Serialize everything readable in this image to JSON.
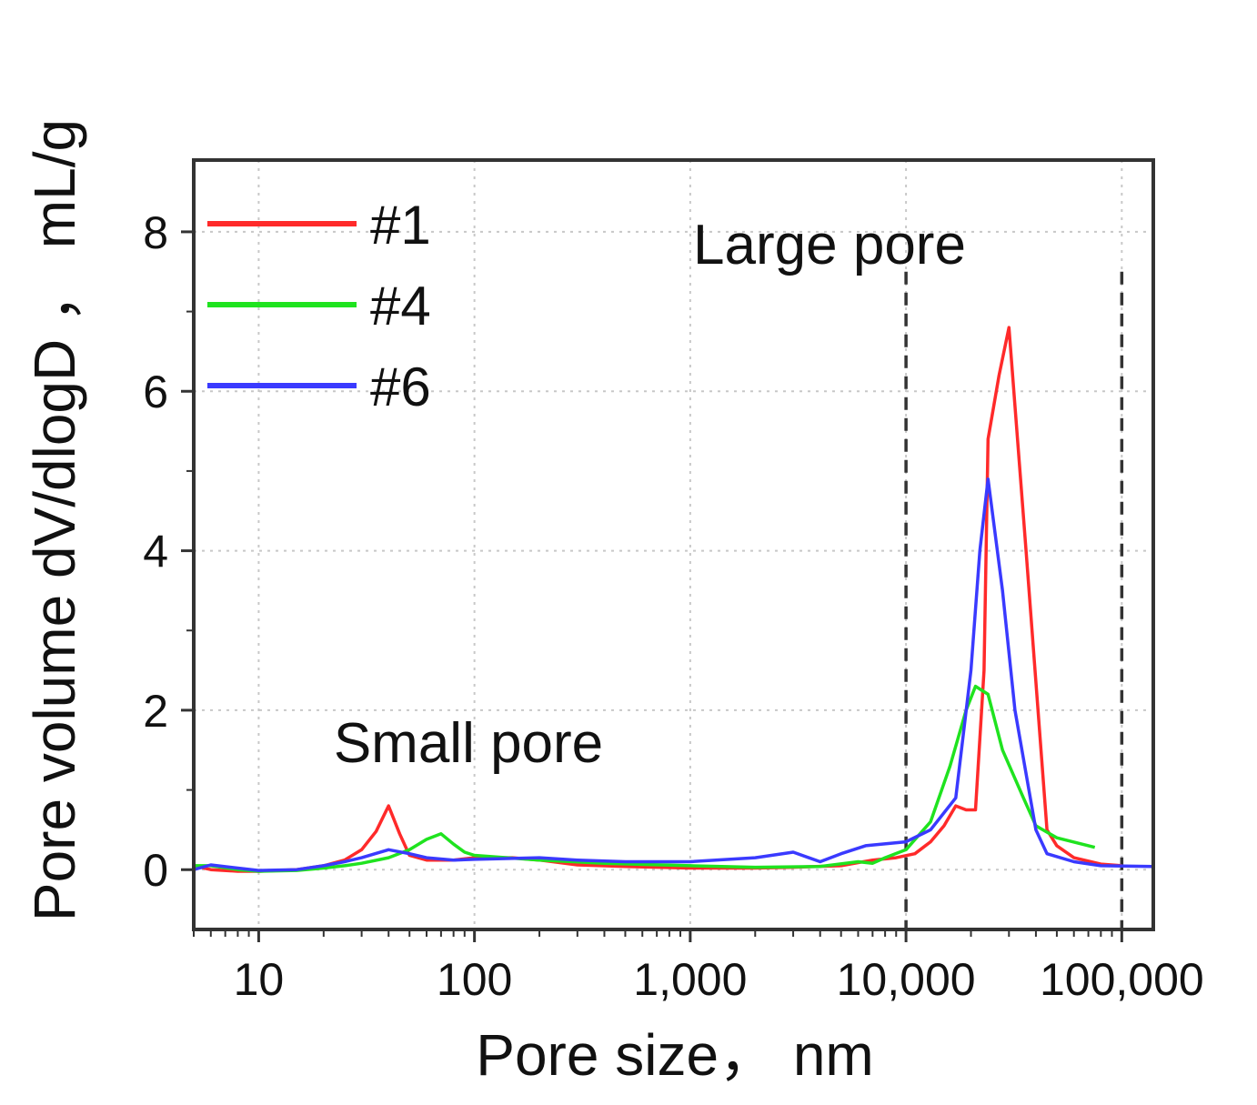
{
  "chart_data": {
    "type": "line",
    "title": "",
    "xlabel": "Pore size， nm",
    "ylabel": "Pore volume dV/dlogD ， mL/g",
    "x_scale": "log",
    "xlim": [
      5,
      140000
    ],
    "ylim": [
      -0.75,
      8.9
    ],
    "grid": true,
    "x_ticks": [
      {
        "value": 10,
        "label": "10"
      },
      {
        "value": 100,
        "label": "100"
      },
      {
        "value": 1000,
        "label": "1,000"
      },
      {
        "value": 10000,
        "label": "10,000"
      },
      {
        "value": 100000,
        "label": "100,000"
      }
    ],
    "y_ticks": [
      {
        "value": 0,
        "label": "0"
      },
      {
        "value": 2,
        "label": "2"
      },
      {
        "value": 4,
        "label": "4"
      },
      {
        "value": 6,
        "label": "6"
      },
      {
        "value": 8,
        "label": "8"
      }
    ],
    "legend_position": "top-left",
    "series": [
      {
        "name": "#1",
        "color": "#ff2a2a",
        "points": [
          [
            5,
            0.05
          ],
          [
            6,
            0.0
          ],
          [
            8,
            -0.02
          ],
          [
            10,
            -0.02
          ],
          [
            15,
            0.0
          ],
          [
            20,
            0.05
          ],
          [
            25,
            0.12
          ],
          [
            30,
            0.25
          ],
          [
            35,
            0.48
          ],
          [
            40,
            0.8
          ],
          [
            45,
            0.45
          ],
          [
            50,
            0.18
          ],
          [
            60,
            0.12
          ],
          [
            80,
            0.12
          ],
          [
            100,
            0.15
          ],
          [
            150,
            0.15
          ],
          [
            200,
            0.12
          ],
          [
            300,
            0.06
          ],
          [
            500,
            0.04
          ],
          [
            1000,
            0.02
          ],
          [
            2000,
            0.02
          ],
          [
            3000,
            0.03
          ],
          [
            5000,
            0.05
          ],
          [
            7000,
            0.12
          ],
          [
            9000,
            0.15
          ],
          [
            11000,
            0.2
          ],
          [
            13000,
            0.35
          ],
          [
            15000,
            0.55
          ],
          [
            17000,
            0.8
          ],
          [
            19000,
            0.75
          ],
          [
            21000,
            0.75
          ],
          [
            23000,
            2.5
          ],
          [
            24000,
            5.4
          ],
          [
            27000,
            6.2
          ],
          [
            30000,
            6.8
          ],
          [
            36000,
            4.0
          ],
          [
            45000,
            0.5
          ],
          [
            50000,
            0.3
          ],
          [
            60000,
            0.15
          ],
          [
            80000,
            0.07
          ],
          [
            100000,
            0.05
          ]
        ]
      },
      {
        "name": "#4",
        "color": "#1fe31f",
        "points": [
          [
            5,
            0.05
          ],
          [
            6,
            0.05
          ],
          [
            8,
            0.0
          ],
          [
            10,
            -0.02
          ],
          [
            15,
            -0.01
          ],
          [
            20,
            0.02
          ],
          [
            25,
            0.05
          ],
          [
            30,
            0.08
          ],
          [
            40,
            0.15
          ],
          [
            50,
            0.25
          ],
          [
            60,
            0.38
          ],
          [
            70,
            0.45
          ],
          [
            80,
            0.32
          ],
          [
            90,
            0.22
          ],
          [
            100,
            0.18
          ],
          [
            200,
            0.12
          ],
          [
            400,
            0.08
          ],
          [
            1000,
            0.05
          ],
          [
            2000,
            0.03
          ],
          [
            4000,
            0.04
          ],
          [
            6000,
            0.1
          ],
          [
            7000,
            0.08
          ],
          [
            8000,
            0.15
          ],
          [
            10000,
            0.25
          ],
          [
            13000,
            0.6
          ],
          [
            16000,
            1.3
          ],
          [
            19000,
            2.0
          ],
          [
            21000,
            2.3
          ],
          [
            24000,
            2.2
          ],
          [
            28000,
            1.5
          ],
          [
            35000,
            0.9
          ],
          [
            40000,
            0.55
          ],
          [
            50000,
            0.4
          ],
          [
            75000,
            0.28
          ]
        ]
      },
      {
        "name": "#6",
        "color": "#3a3aff",
        "points": [
          [
            5,
            0.0
          ],
          [
            6,
            0.06
          ],
          [
            8,
            0.02
          ],
          [
            10,
            -0.01
          ],
          [
            15,
            0.0
          ],
          [
            20,
            0.05
          ],
          [
            25,
            0.1
          ],
          [
            30,
            0.15
          ],
          [
            40,
            0.25
          ],
          [
            50,
            0.2
          ],
          [
            60,
            0.15
          ],
          [
            80,
            0.12
          ],
          [
            100,
            0.13
          ],
          [
            200,
            0.15
          ],
          [
            300,
            0.12
          ],
          [
            500,
            0.1
          ],
          [
            1000,
            0.1
          ],
          [
            2000,
            0.15
          ],
          [
            3000,
            0.22
          ],
          [
            4000,
            0.1
          ],
          [
            5000,
            0.2
          ],
          [
            6500,
            0.3
          ],
          [
            10000,
            0.35
          ],
          [
            13000,
            0.5
          ],
          [
            17000,
            0.9
          ],
          [
            20000,
            2.5
          ],
          [
            22000,
            4.0
          ],
          [
            24000,
            4.9
          ],
          [
            28000,
            3.5
          ],
          [
            32000,
            2.0
          ],
          [
            40000,
            0.5
          ],
          [
            45000,
            0.2
          ],
          [
            60000,
            0.1
          ],
          [
            80000,
            0.05
          ],
          [
            140000,
            0.04
          ]
        ]
      }
    ],
    "reference_lines": [
      {
        "x": 10000,
        "style": "dashed"
      },
      {
        "x": 100000,
        "style": "dashed"
      }
    ],
    "annotations": [
      {
        "text": "Large pore",
        "x": 30000,
        "y": 7.85
      },
      {
        "text": "Small pore",
        "x": 80,
        "y": 1.6
      }
    ]
  }
}
